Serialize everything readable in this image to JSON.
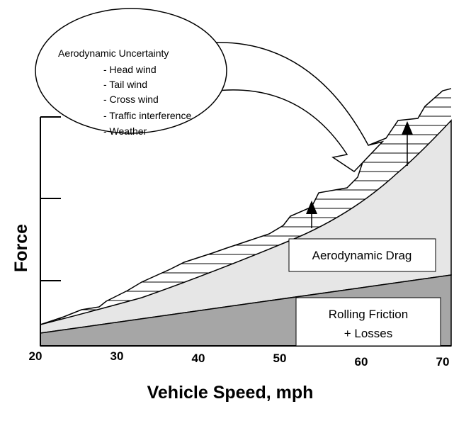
{
  "axis": {
    "x_title": "Vehicle Speed, mph",
    "y_title": "Force",
    "x_ticks": [
      20,
      30,
      40,
      50,
      60,
      70
    ]
  },
  "callout": {
    "title": "Aerodynamic Uncertainty",
    "items": [
      "- Head wind",
      "- Tail wind",
      "- Cross wind",
      "- Traffic interference",
      "- Weather"
    ]
  },
  "regions": {
    "drag": "Aerodynamic Drag",
    "rolling": [
      "Rolling Friction",
      "+ Losses"
    ]
  }
}
